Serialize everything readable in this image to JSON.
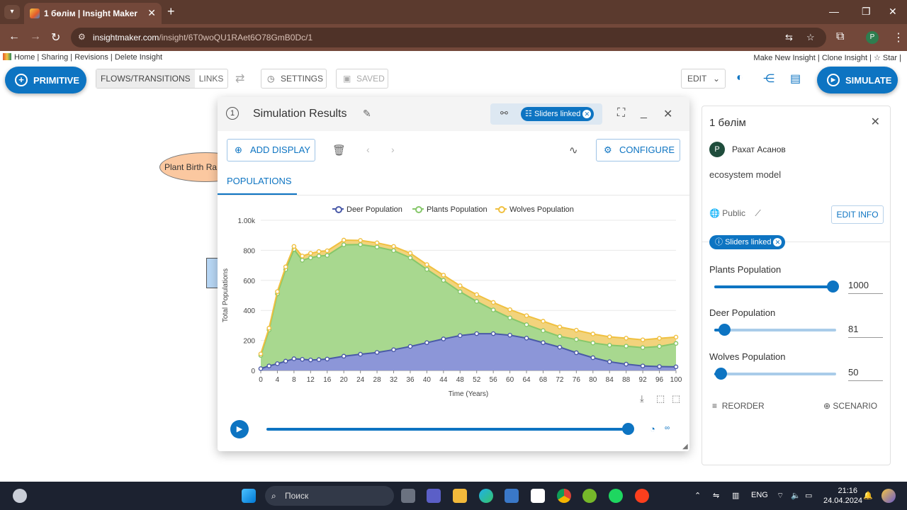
{
  "browser": {
    "tab_title": "1 бөлім | Insight Maker",
    "url_host": "insightmaker.com",
    "url_path": "/insight/6T0woQU1RAet6O78GmB0Dc/1",
    "profile_initial": "P"
  },
  "top_links": {
    "left": "Home | Sharing | Revisions | Delete Insight",
    "right": "Make New Insight | Clone Insight | ☆ Star |"
  },
  "toolbar": {
    "primitive_label": "PRIMITIVE",
    "flows_label": "FLOWS/TRANSITIONS",
    "links_label": "LINKS",
    "settings_label": "SETTINGS",
    "saved_label": "SAVED",
    "edit_label": "EDIT",
    "simulate_label": "SIMULATE"
  },
  "canvas": {
    "ellipse_label": "Plant Birth Ra"
  },
  "results": {
    "number": "1",
    "title": "Simulation Results",
    "sliders_chip": "Sliders linked",
    "add_display_label": "ADD DISPLAY",
    "configure_label": "CONFIGURE",
    "tab_label": "POPULATIONS"
  },
  "chart_data": {
    "type": "area",
    "stacked": true,
    "title": "",
    "xlabel": "Time (Years)",
    "ylabel": "Total Populations",
    "xlim": [
      0,
      100
    ],
    "ylim": [
      0,
      1000
    ],
    "x_ticks": [
      "0",
      "4",
      "8",
      "12",
      "16",
      "20",
      "24",
      "28",
      "32",
      "36",
      "40",
      "44",
      "48",
      "52",
      "56",
      "60",
      "64",
      "68",
      "72",
      "76",
      "80",
      "84",
      "88",
      "92",
      "96",
      "100"
    ],
    "y_ticks": [
      "0",
      "200",
      "400",
      "600",
      "800",
      "1.00k"
    ],
    "legend_position": "top-center",
    "grid": true,
    "x": [
      0,
      2,
      4,
      6,
      8,
      10,
      12,
      14,
      16,
      20,
      24,
      28,
      32,
      36,
      40,
      44,
      48,
      52,
      56,
      60,
      64,
      68,
      72,
      76,
      80,
      84,
      88,
      92,
      96,
      100
    ],
    "series": [
      {
        "name": "Deer Population",
        "color": "#4a5aa8",
        "fill": "#8c96d8",
        "values": [
          12,
          30,
          45,
          62,
          78,
          74,
          70,
          72,
          76,
          95,
          108,
          120,
          138,
          160,
          185,
          210,
          232,
          245,
          245,
          235,
          215,
          185,
          155,
          118,
          85,
          58,
          42,
          30,
          26,
          24
        ]
      },
      {
        "name": "Plants Population",
        "color": "#86c76a",
        "fill": "#a8d88f",
        "values": [
          88,
          240,
          465,
          610,
          728,
          660,
          680,
          690,
          690,
          742,
          730,
          702,
          660,
          590,
          488,
          390,
          292,
          215,
          158,
          115,
          90,
          80,
          72,
          88,
          98,
          110,
          120,
          122,
          134,
          156
        ]
      },
      {
        "name": "Wolves Population",
        "color": "#f0c040",
        "fill": "#f2d37c",
        "values": [
          10,
          12,
          15,
          18,
          20,
          28,
          30,
          30,
          31,
          31,
          28,
          28,
          28,
          31,
          32,
          35,
          40,
          45,
          50,
          55,
          60,
          63,
          63,
          62,
          60,
          56,
          53,
          52,
          54,
          42
        ]
      }
    ]
  },
  "panel": {
    "title": "1 бөлім",
    "author_initial": "P",
    "author": "Рахат Асанов",
    "description": "ecosystem model",
    "visibility": "Public",
    "edit_info_label": "EDIT INFO",
    "sliders_chip": "Sliders linked",
    "sliders": [
      {
        "label": "Plants Population",
        "value": "1000",
        "fraction": 0.97
      },
      {
        "label": "Deer Population",
        "value": "81",
        "fraction": 0.08
      },
      {
        "label": "Wolves Population",
        "value": "50",
        "fraction": 0.05
      }
    ],
    "reorder_label": "REORDER",
    "scenario_label": "SCENARIO"
  },
  "taskbar": {
    "search_placeholder": "Поиск",
    "lang": "ENG",
    "time": "21:16",
    "date": "24.04.2024"
  }
}
